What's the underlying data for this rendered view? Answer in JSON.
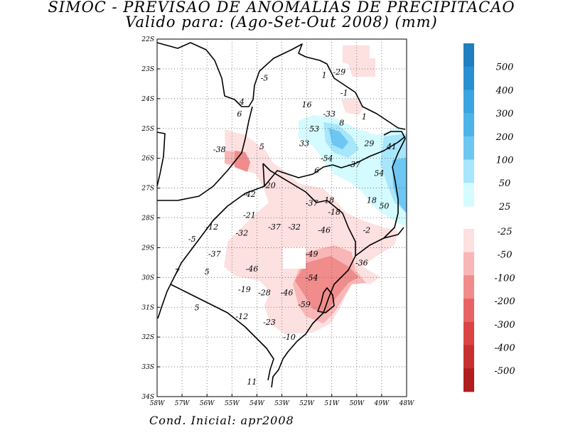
{
  "title": {
    "line1": "SIMOC - PREVISAO DE ANOMALIAS DE PRECIPITACAO",
    "line2": "Valido para: (Ago-Set-Out 2008) (mm)"
  },
  "footer": "Cond. Inicial: apr2008",
  "map": {
    "lon_labels": [
      "58W",
      "57W",
      "56W",
      "55W",
      "54W",
      "53W",
      "52W",
      "51W",
      "50W",
      "49W",
      "48W"
    ],
    "lat_labels": [
      "22S",
      "23S",
      "24S",
      "25S",
      "26S",
      "27S",
      "28S",
      "29S",
      "30S",
      "31S",
      "32S",
      "33S",
      "34S"
    ],
    "lon_range": [
      -58,
      -48
    ],
    "lat_range": [
      -34,
      -22
    ],
    "grid": "dotted",
    "values": [
      {
        "text": "-5",
        "lon": -53.7,
        "lat": -23.3
      },
      {
        "text": "1",
        "lon": -51.3,
        "lat": -23.2
      },
      {
        "text": "-29",
        "lon": -50.7,
        "lat": -23.1
      },
      {
        "text": "-1",
        "lon": -50.5,
        "lat": -23.8
      },
      {
        "text": "4",
        "lon": -54.6,
        "lat": -24.1
      },
      {
        "text": "16",
        "lon": -52.0,
        "lat": -24.2
      },
      {
        "text": "6",
        "lon": -54.7,
        "lat": -24.5
      },
      {
        "text": "-33",
        "lon": -51.1,
        "lat": -24.5
      },
      {
        "text": "1",
        "lon": -49.7,
        "lat": -24.6
      },
      {
        "text": "8",
        "lon": -50.6,
        "lat": -24.8
      },
      {
        "text": "53",
        "lon": -51.7,
        "lat": -25.0
      },
      {
        "text": "33",
        "lon": -52.1,
        "lat": -25.5
      },
      {
        "text": "5",
        "lon": -53.8,
        "lat": -25.6
      },
      {
        "text": "29",
        "lon": -49.5,
        "lat": -25.5
      },
      {
        "text": "41",
        "lon": -48.6,
        "lat": -25.6
      },
      {
        "text": "-38",
        "lon": -55.5,
        "lat": -25.7
      },
      {
        "text": "-54",
        "lon": -51.2,
        "lat": -26.0
      },
      {
        "text": "-37",
        "lon": -50.1,
        "lat": -26.2
      },
      {
        "text": "6",
        "lon": -51.6,
        "lat": -26.4
      },
      {
        "text": "54",
        "lon": -49.1,
        "lat": -26.5
      },
      {
        "text": "-20",
        "lon": -53.5,
        "lat": -26.9
      },
      {
        "text": "-42",
        "lon": -54.3,
        "lat": -27.2
      },
      {
        "text": "-37",
        "lon": -51.8,
        "lat": -27.5
      },
      {
        "text": "18",
        "lon": -51.1,
        "lat": -27.4
      },
      {
        "text": "18",
        "lon": -49.4,
        "lat": -27.4
      },
      {
        "text": "50",
        "lon": -48.9,
        "lat": -27.6
      },
      {
        "text": "-18",
        "lon": -50.9,
        "lat": -27.8
      },
      {
        "text": "-21",
        "lon": -54.3,
        "lat": -27.9
      },
      {
        "text": "-12",
        "lon": -55.8,
        "lat": -28.3
      },
      {
        "text": "-37",
        "lon": -53.3,
        "lat": -28.3
      },
      {
        "text": "-32",
        "lon": -52.5,
        "lat": -28.3
      },
      {
        "text": "-46",
        "lon": -51.3,
        "lat": -28.4
      },
      {
        "text": "-2",
        "lon": -49.6,
        "lat": -28.4
      },
      {
        "text": "-5",
        "lon": -56.6,
        "lat": -28.7
      },
      {
        "text": "-32",
        "lon": -54.6,
        "lat": -28.5
      },
      {
        "text": "-49",
        "lon": -51.8,
        "lat": -29.2
      },
      {
        "text": "-37",
        "lon": -55.7,
        "lat": -29.2
      },
      {
        "text": "-36",
        "lon": -49.8,
        "lat": -29.5
      },
      {
        "text": "-46",
        "lon": -54.2,
        "lat": -29.7
      },
      {
        "text": "7",
        "lon": -57.2,
        "lat": -29.8
      },
      {
        "text": "5",
        "lon": -56.0,
        "lat": -29.8
      },
      {
        "text": "-54",
        "lon": -51.8,
        "lat": -30.0
      },
      {
        "text": "-19",
        "lon": -54.5,
        "lat": -30.4
      },
      {
        "text": "-28",
        "lon": -53.7,
        "lat": -30.5
      },
      {
        "text": "-46",
        "lon": -52.8,
        "lat": -30.5
      },
      {
        "text": "-59",
        "lon": -52.1,
        "lat": -30.9
      },
      {
        "text": "5",
        "lon": -56.4,
        "lat": -31.0
      },
      {
        "text": "-12",
        "lon": -54.6,
        "lat": -31.3
      },
      {
        "text": "-23",
        "lon": -53.5,
        "lat": -31.5
      },
      {
        "text": "-10",
        "lon": -52.7,
        "lat": -32.0
      },
      {
        "text": "11",
        "lon": -54.2,
        "lat": -33.5
      }
    ]
  },
  "colorbar": {
    "positive": [
      {
        "label": "500",
        "color": "#1f7fc1"
      },
      {
        "label": "400",
        "color": "#2890d0"
      },
      {
        "label": "300",
        "color": "#3aa5e0"
      },
      {
        "label": "200",
        "color": "#4db4ea"
      },
      {
        "label": "100",
        "color": "#6ec6f2"
      },
      {
        "label": "50",
        "color": "#a8e6fb"
      },
      {
        "label": "25",
        "color": "#d4fbff"
      }
    ],
    "negative": [
      {
        "label": "-25",
        "color": "#fde0e0"
      },
      {
        "label": "-50",
        "color": "#f9b6b6"
      },
      {
        "label": "-100",
        "color": "#f08c8c"
      },
      {
        "label": "-200",
        "color": "#e86464"
      },
      {
        "label": "-300",
        "color": "#dc4444"
      },
      {
        "label": "-400",
        "color": "#c83030"
      },
      {
        "label": "-500",
        "color": "#b01e1e"
      }
    ]
  }
}
